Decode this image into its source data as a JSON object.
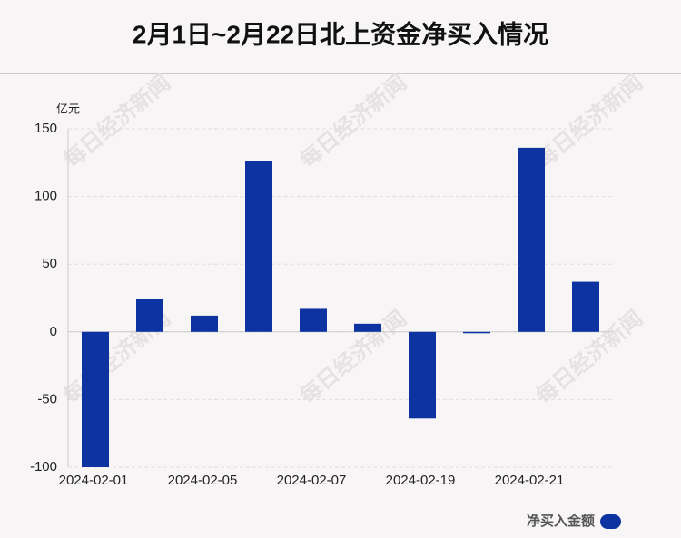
{
  "chart_data": {
    "type": "bar",
    "title": "2月1日~2月22日北上资金净买入情况",
    "y_unit": "亿元",
    "categories": [
      "2024-02-01",
      null,
      "2024-02-05",
      null,
      "2024-02-07",
      null,
      "2024-02-19",
      null,
      "2024-02-21",
      null
    ],
    "series": [
      {
        "name": "净买入金额",
        "color": "#0d33a0",
        "values": [
          -100,
          24,
          12,
          126,
          17,
          6,
          -64,
          -1,
          136,
          37
        ]
      }
    ],
    "ylim": [
      -100,
      150
    ],
    "yticks": [
      -100,
      -50,
      0,
      50,
      100,
      150
    ],
    "grid": true,
    "legend": "bottom-right",
    "watermark": "每日经济新闻"
  }
}
